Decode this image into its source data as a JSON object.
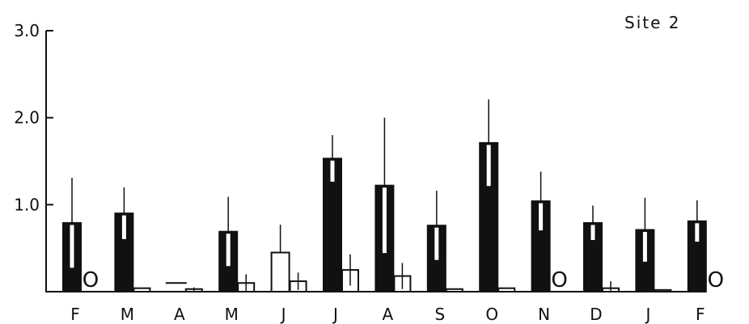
{
  "chart_data": {
    "type": "bar",
    "title": "Site 2",
    "xlabel": "",
    "ylabel": "",
    "ylim": [
      0,
      3.0
    ],
    "yticks": [
      "3.0",
      "2.0",
      "1.0"
    ],
    "categories": [
      "F",
      "M",
      "A",
      "M",
      "J",
      "J",
      "A",
      "S",
      "O",
      "N",
      "D",
      "J",
      "F"
    ],
    "series": [
      {
        "style": "filled",
        "values": [
          0.79,
          0.9,
          null,
          0.69,
          0.45,
          1.53,
          1.22,
          0.76,
          1.71,
          1.04,
          0.79,
          0.71,
          0.81
        ],
        "errors": [
          0.52,
          0.3,
          null,
          0.4,
          0.32,
          0.27,
          0.78,
          0.4,
          0.5,
          0.34,
          0.2,
          0.37,
          0.24
        ],
        "open": [
          false,
          false,
          false,
          false,
          true,
          false,
          false,
          false,
          false,
          false,
          false,
          false,
          false
        ]
      },
      {
        "style": "open",
        "values": [
          0,
          0.04,
          0.03,
          0.1,
          0.12,
          0.25,
          0.18,
          0.03,
          0.04,
          0,
          0.04,
          0.02,
          0
        ],
        "errors": [
          0,
          0,
          0.02,
          0.1,
          0.1,
          0.18,
          0.15,
          0,
          0,
          0,
          0.08,
          0,
          0
        ]
      }
    ],
    "special_marks": [
      {
        "category_index": 2,
        "series": 0,
        "value": 0.1,
        "mark": "dash"
      }
    ],
    "zero_label": "O",
    "grid": false
  }
}
